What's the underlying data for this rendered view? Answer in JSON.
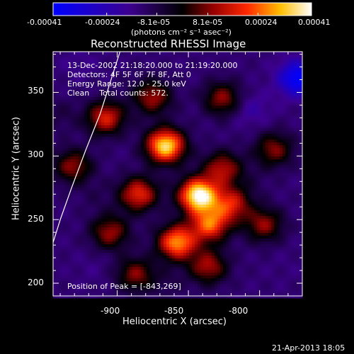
{
  "chart_data": {
    "type": "heatmap",
    "title": "Reconstructed RHESSI Image",
    "xlabel": "Heliocentric X (arcsec)",
    "ylabel": "Heliocentric Y (arcsec)",
    "xlim": [
      -945,
      -770
    ],
    "ylim": [
      190,
      382
    ],
    "x_ticks": [
      -900,
      -850,
      -800
    ],
    "y_ticks": [
      200,
      250,
      300,
      350
    ],
    "colorbar": {
      "range": [
        -0.00041,
        0.00041
      ],
      "ticks": [
        "-0.00041",
        "-0.00024",
        "-8.1e-05",
        "8.1e-05",
        "0.00024",
        "0.00041"
      ],
      "unit_label": "(photons cm⁻² s⁻¹ asec⁻²)"
    },
    "annotations": {
      "time_range": "13-Dec-2002 21:18:20.000 to 21:19:20.000",
      "detectors": "Detectors: 4F 5F 6F 7F 8F, Att 0",
      "energy": "Energy Range: 12.0 - 25.0 keV",
      "algorithm": "Clean    Total counts: 572.",
      "peak": "Position of Peak = [-843,269]"
    },
    "peak": {
      "x": -843,
      "y": 269
    },
    "sources": [
      {
        "x": -843,
        "y": 269,
        "value": 0.00041
      },
      {
        "x": -866,
        "y": 308,
        "value": 0.00036
      },
      {
        "x": -858,
        "y": 232,
        "value": 0.00028
      },
      {
        "x": -835,
        "y": 246,
        "value": 0.00022
      },
      {
        "x": -885,
        "y": 270,
        "value": 0.00018
      },
      {
        "x": -820,
        "y": 262,
        "value": 0.00015
      },
      {
        "x": -826,
        "y": 290,
        "value": 0.00012
      },
      {
        "x": -908,
        "y": 330,
        "value": 0.00016
      },
      {
        "x": -875,
        "y": 346,
        "value": 0.0001
      },
      {
        "x": -905,
        "y": 240,
        "value": 0.0001
      },
      {
        "x": -836,
        "y": 213,
        "value": 0.00011
      },
      {
        "x": -797,
        "y": 246,
        "value": 9e-05
      },
      {
        "x": -887,
        "y": 207,
        "value": 8e-05
      },
      {
        "x": -931,
        "y": 292,
        "value": 9e-05
      },
      {
        "x": -826,
        "y": 345,
        "value": 9e-05
      },
      {
        "x": -790,
        "y": 305,
        "value": 8e-05
      },
      {
        "x": -773,
        "y": 361,
        "value": -0.00041
      },
      {
        "x": -806,
        "y": 337,
        "value": -0.0002
      },
      {
        "x": -926,
        "y": 372,
        "value": -0.00016
      },
      {
        "x": -917,
        "y": 212,
        "value": -0.00015
      },
      {
        "x": -782,
        "y": 214,
        "value": -0.00014
      },
      {
        "x": -884,
        "y": 354,
        "value": -0.00012
      },
      {
        "x": -806,
        "y": 280,
        "value": -0.0001
      },
      {
        "x": -915,
        "y": 268,
        "value": -0.0001
      },
      {
        "x": -865,
        "y": 200,
        "value": -9e-05
      },
      {
        "x": -940,
        "y": 332,
        "value": -8e-05
      }
    ],
    "limb_points": [
      [
        -945,
        232
      ],
      [
        -940,
        250
      ],
      [
        -932,
        275
      ],
      [
        -922,
        305
      ],
      [
        -912,
        333
      ],
      [
        -898,
        382
      ]
    ]
  },
  "footer": {
    "timestamp": "21-Apr-2013 18:05"
  }
}
